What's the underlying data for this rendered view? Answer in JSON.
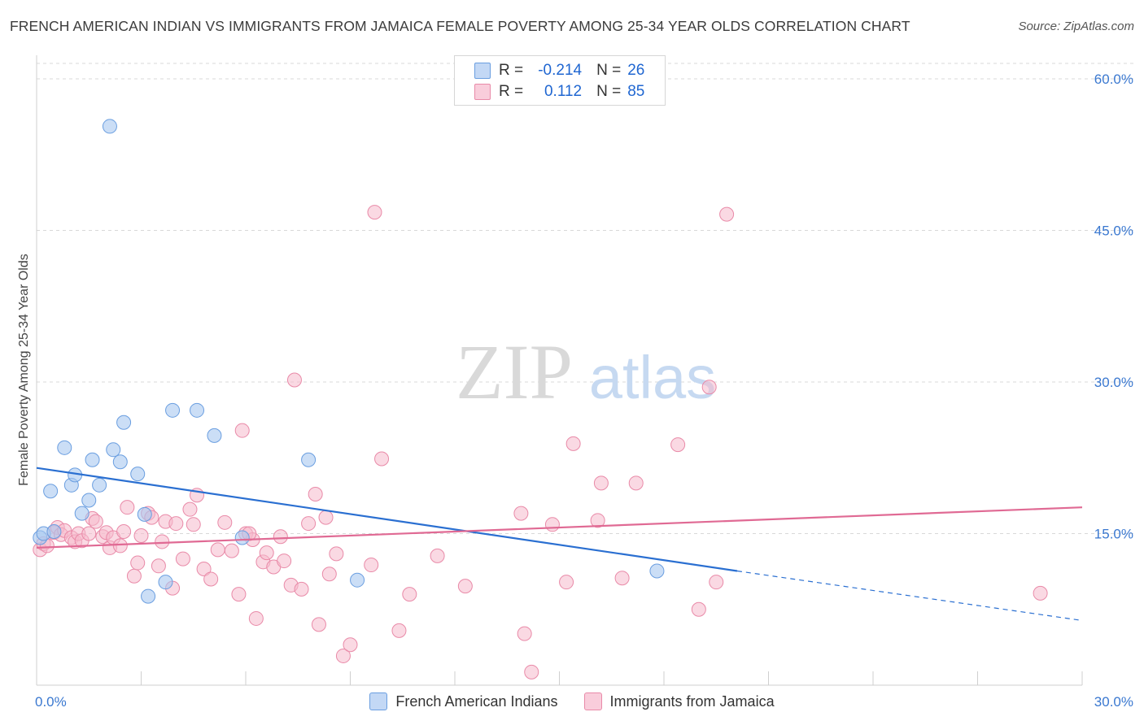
{
  "header": {
    "title": "FRENCH AMERICAN INDIAN VS IMMIGRANTS FROM JAMAICA FEMALE POVERTY AMONG 25-34 YEAR OLDS CORRELATION CHART",
    "source": "Source: ZipAtlas.com"
  },
  "watermark": {
    "zip": "ZIP",
    "atlas": "atlas"
  },
  "legend": {
    "rows": [
      {
        "r_label": "R =",
        "r_value": "-0.214",
        "n_label": "N =",
        "n_value": "26"
      },
      {
        "r_label": "R =",
        "r_value": "0.112",
        "n_label": "N =",
        "n_value": "85"
      }
    ]
  },
  "chart_data": {
    "type": "scatter",
    "title": "FRENCH AMERICAN INDIAN VS IMMIGRANTS FROM JAMAICA FEMALE POVERTY AMONG 25-34 YEAR OLDS CORRELATION CHART",
    "xlabel": "",
    "ylabel": "Female Poverty Among 25-34 Year Olds",
    "xlim": [
      0,
      30
    ],
    "ylim": [
      0,
      60
    ],
    "x_tick_labels": [
      "0.0%",
      "30.0%"
    ],
    "y_ticks": [
      15,
      30,
      45,
      60
    ],
    "y_tick_labels": [
      "15.0%",
      "30.0%",
      "45.0%",
      "60.0%"
    ],
    "grid": true,
    "legend_placement": "bottom-center",
    "colors": {
      "blue_fill": "#a9c8f0",
      "blue_stroke": "#6a9ee0",
      "blue_line": "#2a6fd1",
      "pink_fill": "#f6b9cc",
      "pink_stroke": "#e98aa8",
      "pink_line": "#e06a94",
      "tick_label": "#3a78d0",
      "grid": "#d9d9d9"
    },
    "series": [
      {
        "name": "French American Indians",
        "color": "#a9c8f0",
        "trend": {
          "x": [
            0.0,
            20.1
          ],
          "y": [
            21.5,
            11.3
          ],
          "dashed_to": [
            30.0,
            6.4
          ]
        },
        "points": [
          [
            0.1,
            14.6
          ],
          [
            0.2,
            15.0
          ],
          [
            0.4,
            19.2
          ],
          [
            0.5,
            15.2
          ],
          [
            0.8,
            23.5
          ],
          [
            1.0,
            19.8
          ],
          [
            1.1,
            20.8
          ],
          [
            1.3,
            17.0
          ],
          [
            1.5,
            18.3
          ],
          [
            1.6,
            22.3
          ],
          [
            1.8,
            19.8
          ],
          [
            2.1,
            55.3
          ],
          [
            2.2,
            23.3
          ],
          [
            2.4,
            22.1
          ],
          [
            2.5,
            26.0
          ],
          [
            2.9,
            20.9
          ],
          [
            3.1,
            16.9
          ],
          [
            3.2,
            8.8
          ],
          [
            3.7,
            10.2
          ],
          [
            3.9,
            27.2
          ],
          [
            4.6,
            27.2
          ],
          [
            5.1,
            24.7
          ],
          [
            5.9,
            14.6
          ],
          [
            7.8,
            22.3
          ],
          [
            9.2,
            10.4
          ],
          [
            17.8,
            11.3
          ]
        ]
      },
      {
        "name": "Immigrants from Jamaica",
        "color": "#f6b9cc",
        "trend": {
          "x": [
            0.0,
            30.0
          ],
          "y": [
            13.6,
            17.6
          ]
        },
        "points": [
          [
            0.1,
            13.4
          ],
          [
            0.2,
            14.0
          ],
          [
            0.3,
            13.8
          ],
          [
            0.5,
            15.1
          ],
          [
            0.6,
            15.6
          ],
          [
            0.7,
            14.9
          ],
          [
            0.8,
            15.3
          ],
          [
            1.0,
            14.6
          ],
          [
            1.1,
            14.2
          ],
          [
            1.2,
            15.0
          ],
          [
            1.3,
            14.3
          ],
          [
            1.5,
            15.0
          ],
          [
            1.6,
            16.5
          ],
          [
            1.7,
            16.2
          ],
          [
            1.9,
            14.7
          ],
          [
            2.0,
            15.1
          ],
          [
            2.1,
            13.6
          ],
          [
            2.2,
            14.6
          ],
          [
            2.4,
            13.8
          ],
          [
            2.5,
            15.2
          ],
          [
            2.6,
            17.6
          ],
          [
            2.8,
            10.8
          ],
          [
            2.9,
            12.1
          ],
          [
            3.0,
            14.8
          ],
          [
            3.2,
            17.0
          ],
          [
            3.3,
            16.6
          ],
          [
            3.5,
            11.8
          ],
          [
            3.6,
            14.2
          ],
          [
            3.7,
            16.2
          ],
          [
            3.9,
            9.6
          ],
          [
            4.0,
            16.0
          ],
          [
            4.2,
            12.5
          ],
          [
            4.4,
            17.4
          ],
          [
            4.5,
            15.9
          ],
          [
            4.6,
            18.8
          ],
          [
            4.8,
            11.5
          ],
          [
            5.0,
            10.5
          ],
          [
            5.2,
            13.4
          ],
          [
            5.4,
            16.1
          ],
          [
            5.6,
            13.3
          ],
          [
            5.8,
            9.0
          ],
          [
            5.9,
            25.2
          ],
          [
            6.0,
            15.0
          ],
          [
            6.2,
            14.4
          ],
          [
            6.3,
            6.6
          ],
          [
            6.5,
            12.2
          ],
          [
            6.6,
            13.1
          ],
          [
            6.8,
            11.7
          ],
          [
            7.0,
            14.7
          ],
          [
            7.1,
            12.3
          ],
          [
            7.3,
            9.9
          ],
          [
            7.4,
            30.2
          ],
          [
            7.6,
            9.5
          ],
          [
            7.8,
            16.0
          ],
          [
            8.0,
            18.9
          ],
          [
            8.1,
            6.0
          ],
          [
            8.3,
            16.6
          ],
          [
            8.4,
            11.0
          ],
          [
            8.6,
            13.0
          ],
          [
            8.8,
            2.9
          ],
          [
            9.0,
            4.0
          ],
          [
            9.6,
            11.9
          ],
          [
            9.7,
            46.8
          ],
          [
            9.9,
            22.4
          ],
          [
            10.4,
            5.4
          ],
          [
            10.7,
            9.0
          ],
          [
            11.5,
            12.8
          ],
          [
            12.3,
            9.8
          ],
          [
            13.9,
            17.0
          ],
          [
            14.0,
            5.1
          ],
          [
            14.2,
            1.3
          ],
          [
            14.8,
            15.9
          ],
          [
            15.2,
            10.2
          ],
          [
            15.4,
            23.9
          ],
          [
            16.1,
            16.3
          ],
          [
            16.2,
            20.0
          ],
          [
            16.8,
            10.6
          ],
          [
            17.2,
            20.0
          ],
          [
            18.4,
            23.8
          ],
          [
            19.0,
            7.5
          ],
          [
            19.3,
            29.5
          ],
          [
            19.5,
            10.2
          ],
          [
            19.8,
            46.6
          ],
          [
            28.8,
            9.1
          ],
          [
            6.1,
            15.0
          ]
        ]
      }
    ]
  }
}
